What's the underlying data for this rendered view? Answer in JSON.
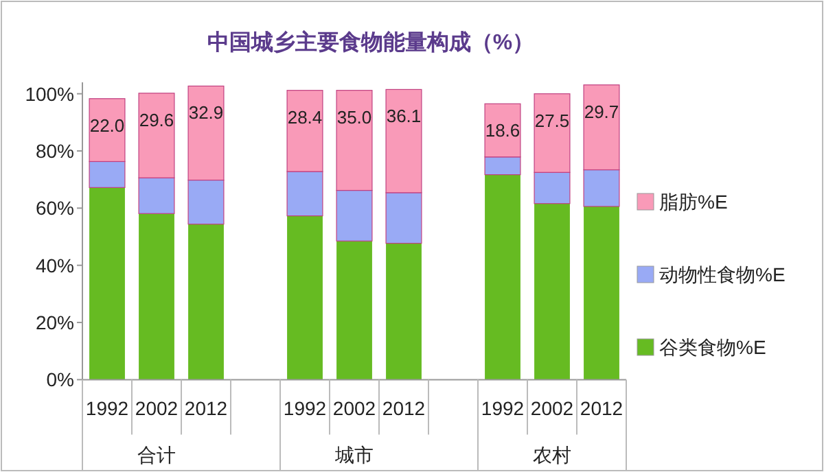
{
  "chart_data": {
    "type": "bar",
    "stacked": true,
    "title": "中国城乡主要食物能量构成（%）",
    "categories": [
      "1992",
      "2002",
      "2012",
      null,
      "1992",
      "2002",
      "2012",
      null,
      "1992",
      "2002",
      "2012"
    ],
    "series": [
      {
        "name": "谷类食物%E",
        "color": "#66bb22",
        "values": [
          67.2,
          58.1,
          54.4,
          null,
          57.3,
          48.5,
          47.7,
          null,
          71.7,
          61.6,
          60.6
        ]
      },
      {
        "name": "动物性食物%E",
        "color": "#99aaf5",
        "values": [
          9.1,
          12.5,
          15.4,
          null,
          15.5,
          17.7,
          17.7,
          null,
          6.2,
          10.9,
          12.8
        ]
      },
      {
        "name": "脂肪%E",
        "color": "#f99ab8",
        "values": [
          22.0,
          29.6,
          32.9,
          null,
          28.4,
          35.0,
          36.1,
          null,
          18.6,
          27.5,
          29.7
        ],
        "value_labels": [
          "22.0",
          "29.6",
          "32.9",
          null,
          "28.4",
          "35.0",
          "36.1",
          null,
          "18.6",
          "27.5",
          "29.7"
        ]
      }
    ],
    "annotations": [
      "合计",
      "城市",
      "农村"
    ],
    "ylim": [
      0,
      104
    ],
    "yticks": [
      {
        "value": 0,
        "label": "0%"
      },
      {
        "value": 20,
        "label": "20%"
      },
      {
        "value": 40,
        "label": "40%"
      },
      {
        "value": 60,
        "label": "60%"
      },
      {
        "value": 80,
        "label": "80%"
      },
      {
        "value": 100,
        "label": "100%"
      }
    ],
    "legend": "right",
    "grid": false
  }
}
